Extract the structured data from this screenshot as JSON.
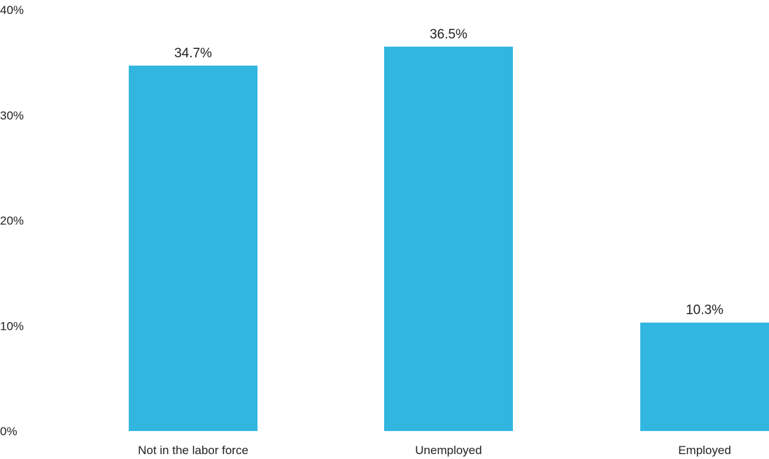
{
  "chart_data": {
    "type": "bar",
    "title": "",
    "xlabel": "",
    "ylabel": "",
    "categories": [
      "Not in the labor force",
      "Unemployed",
      "Employed"
    ],
    "values": [
      34.7,
      36.5,
      10.3
    ],
    "value_labels": [
      "34.7%",
      "36.5%",
      "10.3%"
    ],
    "ylim": [
      0,
      40
    ],
    "yticks": [
      0,
      10,
      20,
      30,
      40
    ],
    "ytick_labels": [
      "0%",
      "10%",
      "20%",
      "30%",
      "40%"
    ],
    "grid": false,
    "legend": "none",
    "bar_color": "#31B6E0"
  }
}
